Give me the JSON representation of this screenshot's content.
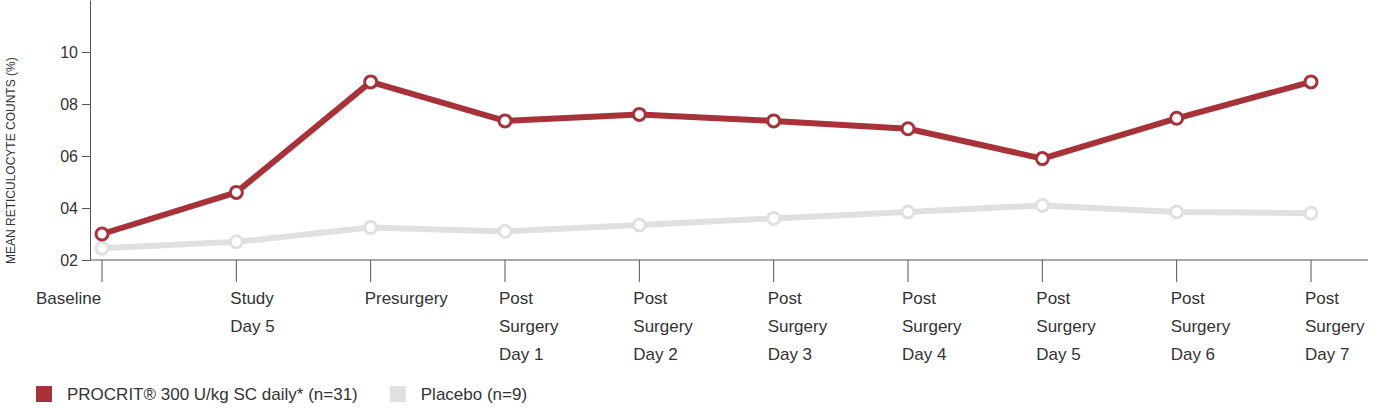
{
  "chart_data": {
    "type": "line",
    "y_label": "MEAN RETICULOCYTE COUNTS (%)",
    "categories": [
      "Baseline",
      "Study\nDay 5",
      "Presurgery",
      "Post\nSurgery\nDay 1",
      "Post\nSurgery\nDay 2",
      "Post\nSurgery\nDay 3",
      "Post\nSurgery\nDay 4",
      "Post\nSurgery\nDay 5",
      "Post\nSurgery\nDay 6",
      "Post\nSurgery\nDay 7"
    ],
    "series": [
      {
        "name": "PROCRIT® 300 U/kg SC daily* (n=31)",
        "color": "#a8323a",
        "marker": "circle-open",
        "values": [
          3.0,
          4.6,
          8.85,
          7.35,
          7.6,
          7.35,
          7.05,
          5.9,
          7.45,
          8.85
        ]
      },
      {
        "name": "Placebo (n=9)",
        "color": "#e0e0e0",
        "marker": "circle-open",
        "values": [
          2.45,
          2.7,
          3.25,
          3.1,
          3.35,
          3.6,
          3.85,
          4.1,
          3.85,
          3.8
        ]
      }
    ],
    "ylim": [
      2,
      12
    ],
    "yticks": [
      {
        "value": 2,
        "label": "02"
      },
      {
        "value": 4,
        "label": "04"
      },
      {
        "value": 6,
        "label": "06"
      },
      {
        "value": 8,
        "label": "08"
      },
      10
    ],
    "grid": false,
    "legend": "bottom-left"
  }
}
